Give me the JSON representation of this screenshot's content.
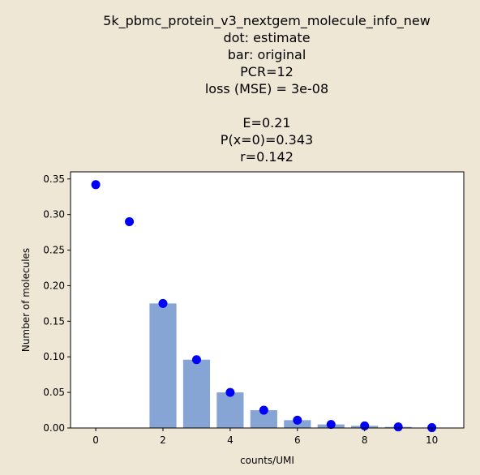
{
  "chart_data": {
    "type": "bar",
    "title_lines": [
      "5k_pbmc_protein_v3_nextgem_molecule_info_new",
      "dot: estimate",
      "bar: original",
      "PCR=12",
      "loss (MSE) = 3e-08",
      "",
      "E=0.21",
      "P(x=0)=0.343",
      "r=0.142"
    ],
    "xlabel": "counts/UMI",
    "ylabel": "Number of molecules",
    "xlim": [
      -0.75,
      10.95
    ],
    "ylim": [
      0,
      0.36
    ],
    "x_ticks": [
      0,
      2,
      4,
      6,
      8,
      10
    ],
    "y_ticks": [
      0.0,
      0.05,
      0.1,
      0.15,
      0.2,
      0.25,
      0.3,
      0.35
    ],
    "y_tick_labels": [
      "0.00",
      "0.05",
      "0.10",
      "0.15",
      "0.20",
      "0.25",
      "0.30",
      "0.35"
    ],
    "bar_color": "#86a4d4",
    "dot_color": "#0000ff",
    "bars": {
      "x": [
        2,
        3,
        4,
        5,
        6,
        7,
        8,
        9,
        10
      ],
      "values": [
        0.175,
        0.096,
        0.05,
        0.025,
        0.011,
        0.005,
        0.003,
        0.0015,
        0.0005
      ]
    },
    "dots": {
      "x": [
        0,
        1,
        2,
        3,
        4,
        5,
        6,
        7,
        8,
        9,
        10
      ],
      "values": [
        0.342,
        0.29,
        0.175,
        0.096,
        0.05,
        0.025,
        0.011,
        0.005,
        0.003,
        0.0015,
        0.0005
      ]
    }
  }
}
